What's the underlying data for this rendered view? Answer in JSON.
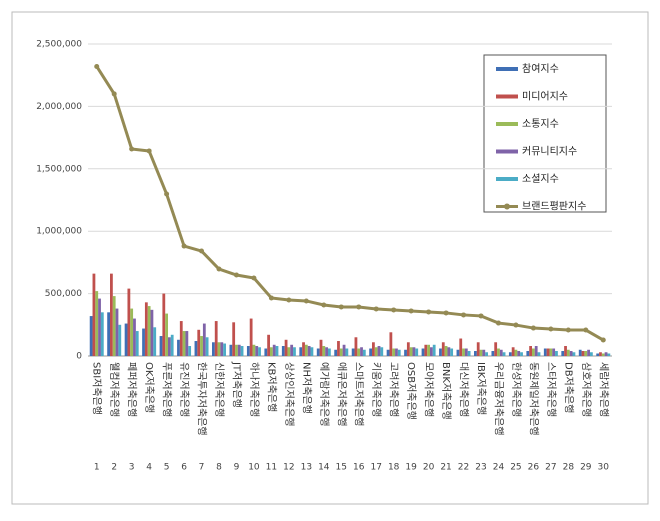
{
  "chart_data": {
    "type": "bar",
    "categories": [
      "SBI저축은행",
      "웰컴저축은행",
      "페퍼저축은행",
      "OK저축은행",
      "푸른저축은행",
      "유진저축은행",
      "한국투자저축은행",
      "신한저축은행",
      "JT저축은행",
      "하나저축은행",
      "KB저축은행",
      "상상인저축은행",
      "NH저축은행",
      "예가람저축은행",
      "애큐온저축은행",
      "스마트저축은행",
      "키움저축은행",
      "고려저축은행",
      "OSB저축은행",
      "모아저축은행",
      "BNK저축은행",
      "대신저축은행",
      "IBK저축은행",
      "우리금융저축은행",
      "한성저축은행",
      "동원제일저축은행",
      "스타저축은행",
      "DB저축은행",
      "삼호저축은행",
      "세람저축은행"
    ],
    "ranks": [
      1,
      2,
      3,
      4,
      5,
      6,
      7,
      8,
      9,
      10,
      11,
      12,
      13,
      14,
      15,
      16,
      17,
      18,
      19,
      20,
      21,
      22,
      23,
      24,
      25,
      26,
      27,
      28,
      29,
      30
    ],
    "series": [
      {
        "name": "참여지수",
        "color": "#3f6fb5",
        "values": [
          320000,
          350000,
          260000,
          220000,
          160000,
          130000,
          120000,
          110000,
          90000,
          80000,
          60000,
          80000,
          70000,
          60000,
          50000,
          60000,
          60000,
          50000,
          50000,
          60000,
          60000,
          50000,
          40000,
          40000,
          30000,
          40000,
          60000,
          40000,
          50000,
          20000
        ]
      },
      {
        "name": "미디어지수",
        "color": "#c0504d",
        "values": [
          660000,
          660000,
          540000,
          430000,
          500000,
          280000,
          210000,
          280000,
          270000,
          300000,
          170000,
          130000,
          110000,
          130000,
          120000,
          150000,
          110000,
          190000,
          110000,
          90000,
          110000,
          140000,
          110000,
          110000,
          70000,
          80000,
          60000,
          80000,
          40000,
          30000
        ]
      },
      {
        "name": "소통지수",
        "color": "#9bbb59",
        "values": [
          520000,
          480000,
          380000,
          400000,
          340000,
          200000,
          160000,
          110000,
          90000,
          90000,
          70000,
          70000,
          90000,
          80000,
          60000,
          60000,
          70000,
          60000,
          70000,
          90000,
          80000,
          60000,
          50000,
          60000,
          50000,
          60000,
          60000,
          50000,
          40000,
          20000
        ]
      },
      {
        "name": "커뮤니티지수",
        "color": "#7f63a8",
        "values": [
          460000,
          380000,
          300000,
          370000,
          150000,
          200000,
          260000,
          110000,
          90000,
          80000,
          90000,
          90000,
          80000,
          70000,
          90000,
          70000,
          80000,
          60000,
          70000,
          70000,
          70000,
          60000,
          50000,
          50000,
          40000,
          80000,
          60000,
          40000,
          50000,
          30000
        ]
      },
      {
        "name": "소셜지수",
        "color": "#4bacc6",
        "values": [
          350000,
          250000,
          200000,
          230000,
          170000,
          80000,
          150000,
          100000,
          80000,
          70000,
          80000,
          70000,
          70000,
          60000,
          60000,
          50000,
          70000,
          50000,
          60000,
          90000,
          60000,
          40000,
          30000,
          30000,
          30000,
          30000,
          40000,
          30000,
          30000,
          20000
        ]
      },
      {
        "name": "브랜드평판지수",
        "type": "line",
        "color": "#948a54",
        "values": [
          2320000,
          2100000,
          1659000,
          1643000,
          1298000,
          881000,
          841000,
          697000,
          649000,
          625000,
          465000,
          449000,
          441000,
          409000,
          393000,
          393000,
          377000,
          369000,
          361000,
          353000,
          345000,
          329000,
          321000,
          264000,
          248000,
          224000,
          216000,
          208000,
          208000,
          128000
        ]
      }
    ],
    "ylim": [
      0,
      2500000
    ],
    "yticks": [
      0,
      {
        "value": 500000,
        "label": "500,000"
      },
      {
        "value": 1000000,
        "label": "1,000,000"
      },
      {
        "value": 1500000,
        "label": "1,500,000"
      },
      {
        "value": 2000000,
        "label": "2,000,000"
      },
      {
        "value": 2500000,
        "label": "2,500,000"
      }
    ],
    "grid": true
  }
}
